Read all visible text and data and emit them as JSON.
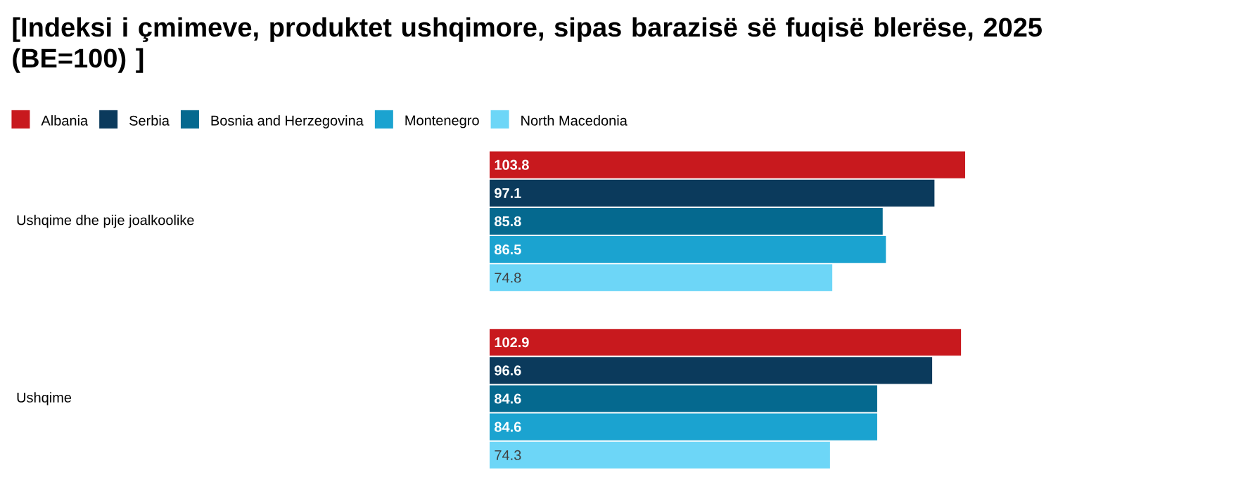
{
  "chart_data": {
    "type": "bar",
    "orientation": "horizontal",
    "title": "[Indeksi i çmimeve, produktet ushqimore, sipas barazisë së fuqisë blerëse, 2025 (BE=100) ]",
    "categories": [
      "Ushqime dhe pije joalkoolike",
      "Ushqime"
    ],
    "series": [
      {
        "name": "Albania",
        "color": "#c8191e",
        "values": [
          103.8,
          102.9
        ]
      },
      {
        "name": "Serbia",
        "color": "#0b3a5c",
        "values": [
          97.1,
          96.6
        ]
      },
      {
        "name": "Bosnia and Herzegovina",
        "color": "#05698f",
        "values": [
          85.8,
          84.6
        ]
      },
      {
        "name": "Montenegro",
        "color": "#1ba3d0",
        "values": [
          86.5,
          84.6
        ]
      },
      {
        "name": "North Macedonia",
        "color": "#6dd6f7",
        "values": [
          74.8,
          74.3
        ]
      }
    ],
    "data_labels": true,
    "legend": "top left"
  }
}
